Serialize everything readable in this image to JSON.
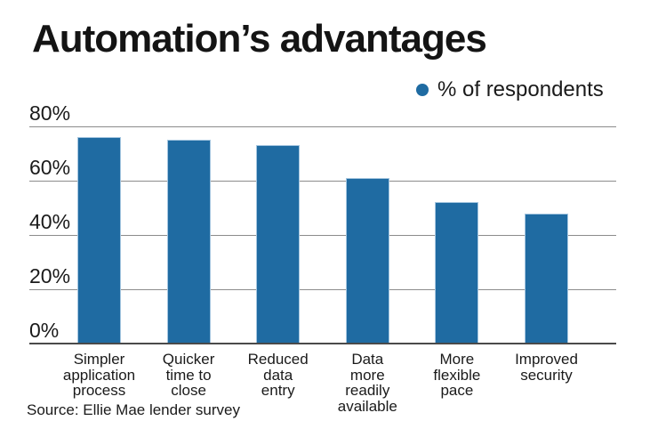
{
  "chart_data": {
    "type": "bar",
    "title": "Automation’s advantages",
    "legend_label": "% of respondents",
    "legend_position": "top-right",
    "categories": [
      "Simpler application process",
      "Quicker time to close",
      "Reduced data entry",
      "Data more readily available",
      "More flexible pace",
      "Improved security"
    ],
    "category_label_lines": [
      [
        "Simpler",
        "application",
        "process"
      ],
      [
        "Quicker",
        "time to",
        "close"
      ],
      [
        "Reduced",
        "data",
        "entry"
      ],
      [
        "Data",
        "more",
        "readily",
        "available"
      ],
      [
        "More",
        "flexible",
        "pace"
      ],
      [
        "Improved",
        "security"
      ]
    ],
    "values": [
      76,
      75,
      73,
      61,
      52,
      48
    ],
    "series": [
      {
        "name": "% of respondents",
        "values": [
          76,
          75,
          73,
          61,
          52,
          48
        ]
      }
    ],
    "xlabel": "",
    "ylabel": "",
    "ylim": [
      0,
      80
    ],
    "yticks": [
      0,
      20,
      40,
      60,
      80
    ],
    "ytick_suffix": "%",
    "grid": true,
    "source": "Source: Ellie Mae lender survey",
    "colors": {
      "bar": "#1f6ba2",
      "bar_border": "#a5c6e0",
      "legend_dot": "#1f6ba2",
      "gridline": "#8c8c8c",
      "baseline": "#4a4a4a",
      "title_text": "#141414",
      "label_text": "#1a1a1a"
    }
  }
}
